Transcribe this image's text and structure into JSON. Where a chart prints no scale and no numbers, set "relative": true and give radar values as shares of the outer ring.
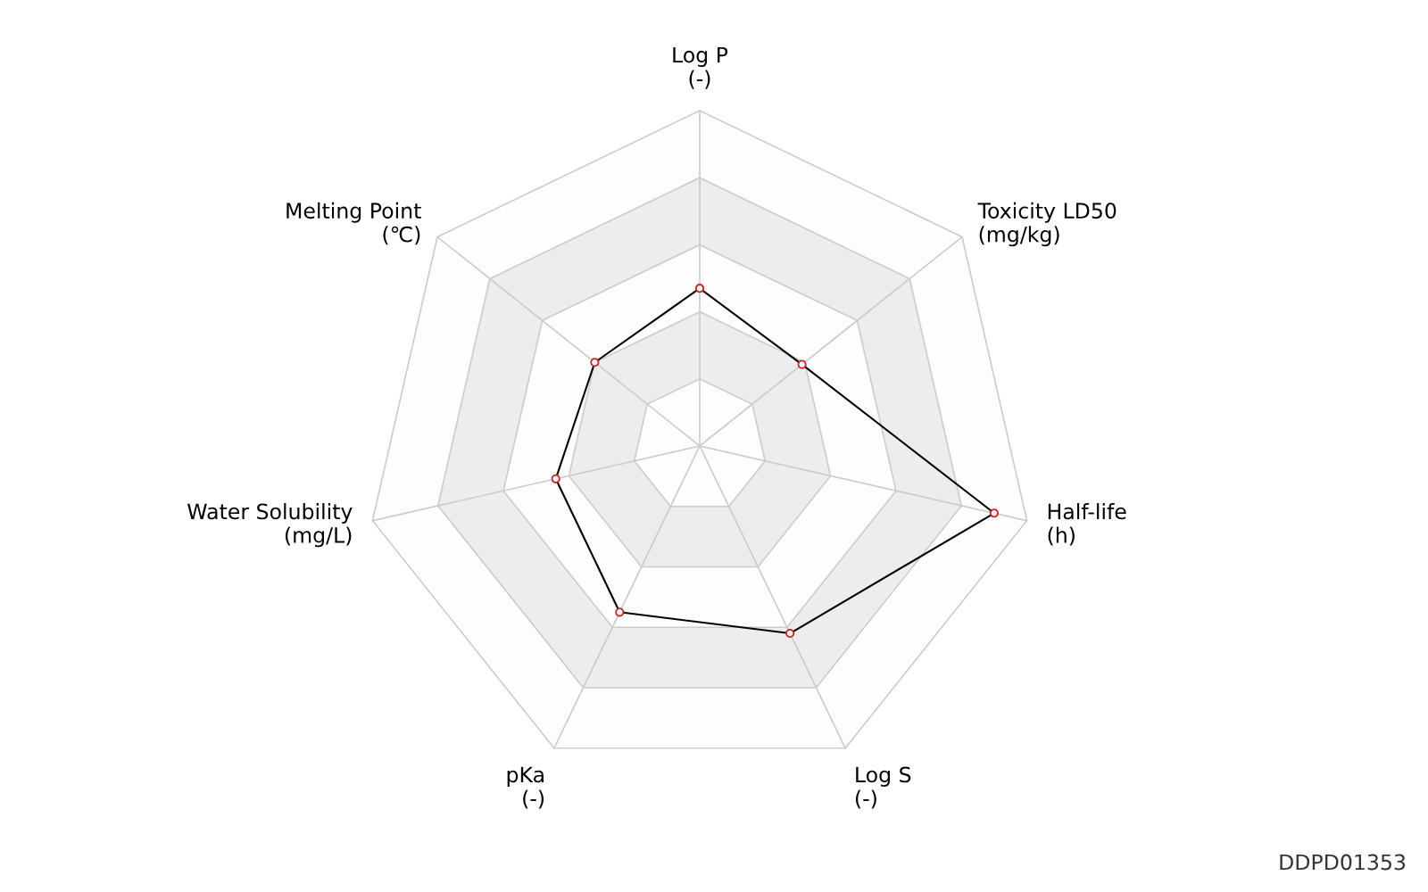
{
  "chart_data": {
    "type": "radar",
    "relative": true,
    "grid": true,
    "marker": "circle",
    "line_style": "solid",
    "categories": [
      "Log P\n(-)",
      "Toxicity LD50\n(mg/kg)",
      "Half-life\n(h)",
      "Log S\n(-)",
      "pKa\n(-)",
      "Water Solubility\n(mg/L)",
      "Melting Point\n(℃)"
    ],
    "series": [
      {
        "color": "#000000",
        "values": [
          0.47,
          0.39,
          0.9,
          0.62,
          0.55,
          0.44,
          0.4
        ]
      }
    ],
    "annotations": [
      "DDPD01353"
    ]
  }
}
